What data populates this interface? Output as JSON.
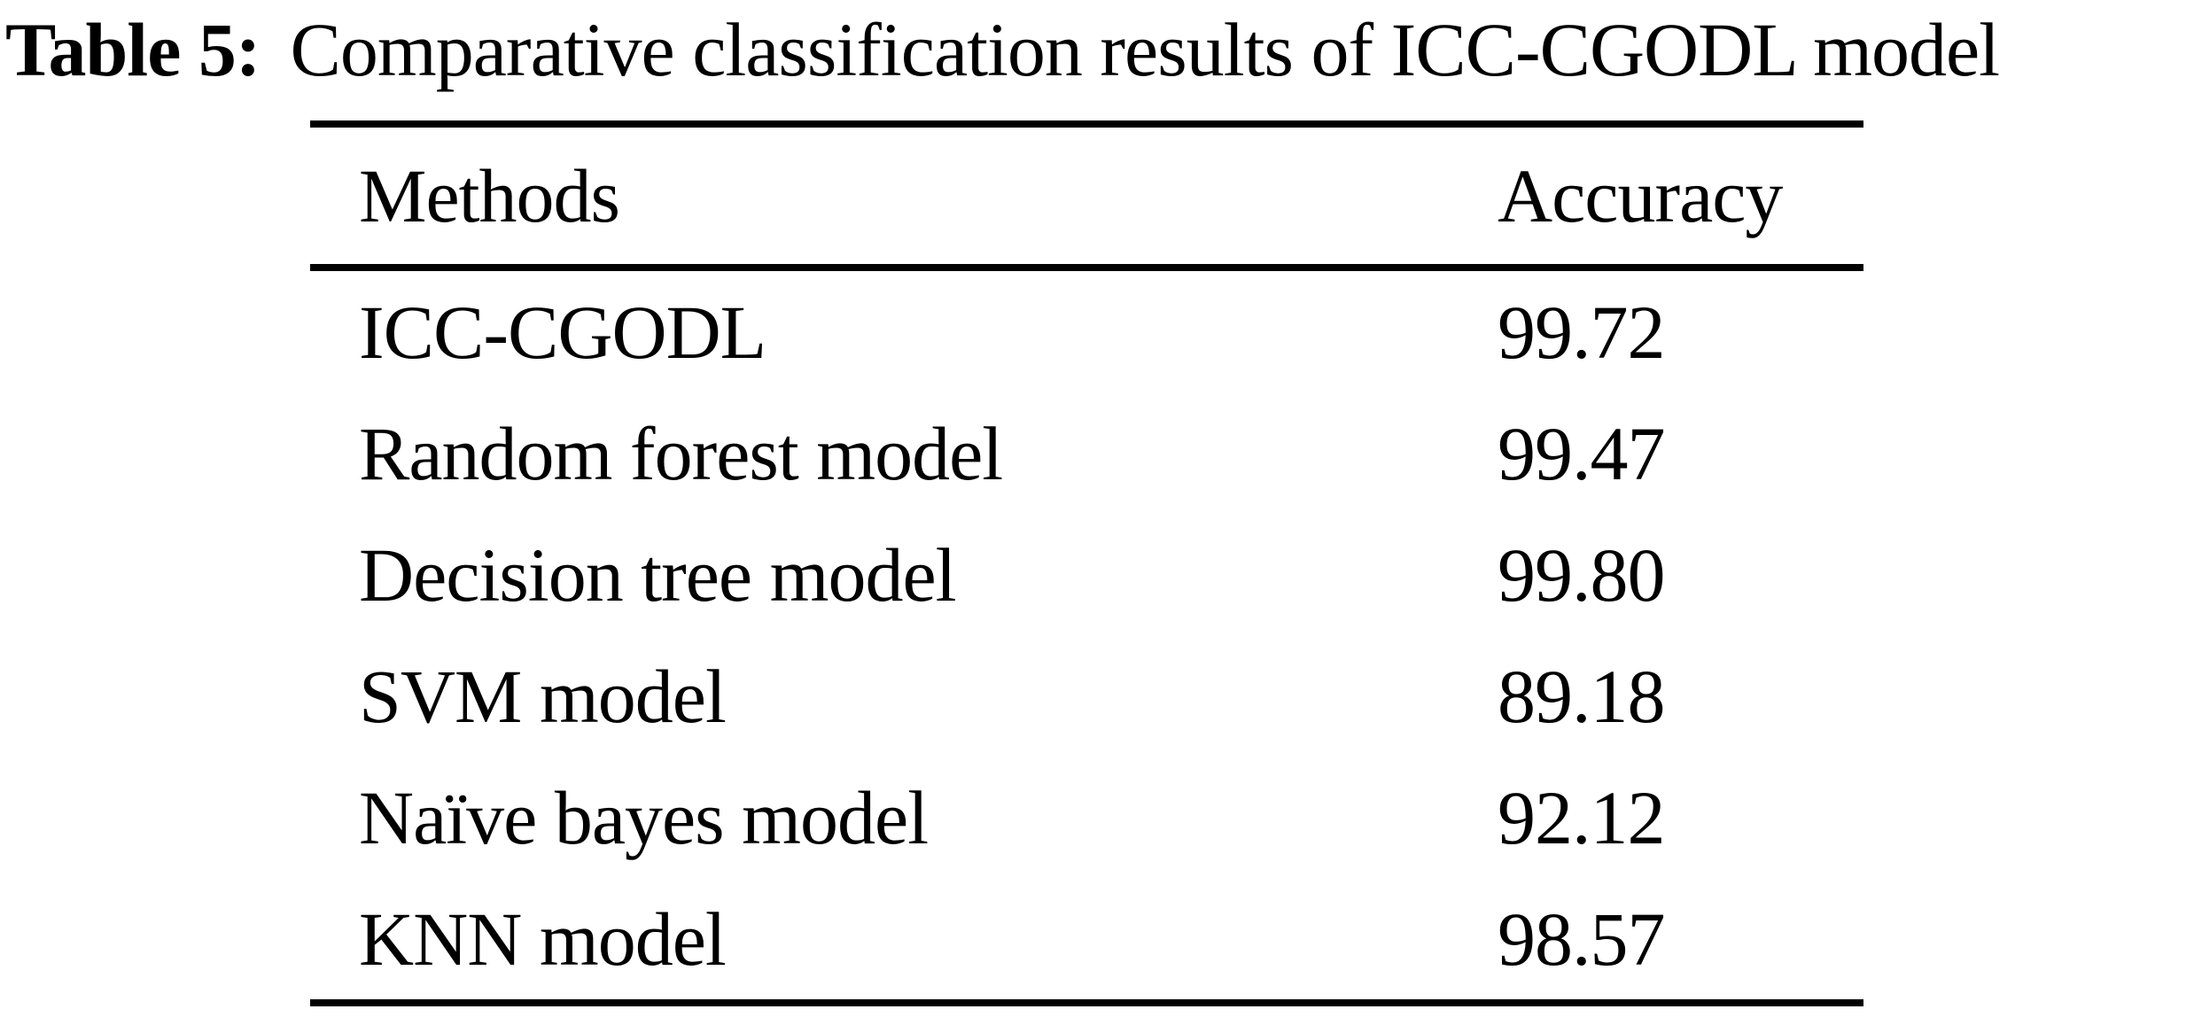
{
  "colors": {
    "background": "#ffffff",
    "text": "#000000",
    "rule": "#000000"
  },
  "caption": {
    "label": "Table 5:",
    "text": "Comparative classification results of ICC-CGODL model"
  },
  "table": {
    "columns": [
      "Methods",
      "Accuracy"
    ],
    "rows": [
      {
        "method": "ICC-CGODL",
        "accuracy": "99.72"
      },
      {
        "method": "Random forest model",
        "accuracy": "99.47"
      },
      {
        "method": "Decision tree model",
        "accuracy": "99.80"
      },
      {
        "method": "SVM model",
        "accuracy": "89.18"
      },
      {
        "method": "Naïve bayes model",
        "accuracy": "92.12"
      },
      {
        "method": "KNN model",
        "accuracy": "98.57"
      }
    ]
  },
  "chart_data": {
    "type": "table",
    "title": "Table 5: Comparative classification results of ICC-CGODL model",
    "columns": [
      "Methods",
      "Accuracy"
    ],
    "categories": [
      "ICC-CGODL",
      "Random forest model",
      "Decision tree model",
      "SVM model",
      "Naïve bayes model",
      "KNN model"
    ],
    "values": [
      99.72,
      99.47,
      99.8,
      89.18,
      92.12,
      98.57
    ]
  }
}
